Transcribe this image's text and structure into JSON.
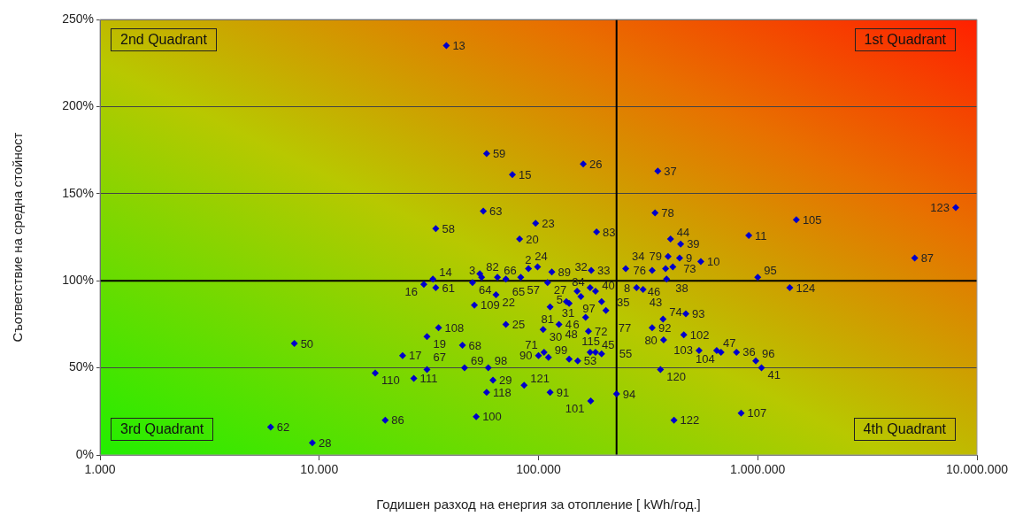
{
  "chart_data": {
    "type": "scatter",
    "xlabel": "Годишен разход на енергия за отопление [ kWh/год.]",
    "ylabel": "Съответствие на средна стойност",
    "x": [
      38000,
      58000,
      76000,
      160000,
      350000,
      56000,
      34000,
      97000,
      184000,
      340000,
      82000,
      8000000,
      1500000,
      910000,
      5200000,
      550000,
      1000000,
      1400000,
      470000,
      460000,
      540000,
      650000,
      680000,
      800000,
      980000,
      1040000,
      840000,
      415000,
      360000,
      330000,
      370000,
      372000,
      400000,
      445000,
      390000,
      440000,
      380000,
      410000,
      384000,
      330000,
      250000,
      174000,
      280000,
      300000,
      33000,
      30000,
      34000,
      50000,
      54000,
      55000,
      65000,
      71000,
      83000,
      90000,
      99000,
      110000,
      115000,
      150000,
      156000,
      172000,
      182000,
      194000,
      203000,
      134000,
      138000,
      113000,
      164000,
      169000,
      105000,
      124000,
      71000,
      35000,
      31000,
      45000,
      24000,
      18000,
      27000,
      31000,
      46000,
      59000,
      62000,
      58000,
      52000,
      86000,
      113000,
      173000,
      227000,
      20000,
      7700,
      6000,
      9300,
      106000,
      100000,
      111000,
      138000,
      151000,
      172000,
      182000,
      194000,
      64000,
      51000
    ],
    "values": [
      235,
      173,
      161,
      167,
      163,
      140,
      130,
      133,
      128,
      139,
      124,
      142,
      135,
      126,
      113,
      111,
      102,
      96,
      81,
      69,
      60,
      60,
      59,
      59,
      54,
      50,
      24,
      20,
      49,
      73,
      78,
      66,
      124,
      121,
      114,
      113,
      107,
      108,
      101,
      106,
      107,
      106,
      96,
      95,
      101,
      98,
      96,
      99,
      104,
      102,
      102,
      101,
      102,
      107,
      108,
      99,
      105,
      94,
      91,
      96,
      94,
      88,
      83,
      88,
      87,
      85,
      79,
      71,
      72,
      75,
      75,
      73,
      68,
      63,
      57,
      47,
      44,
      49,
      50,
      50,
      43,
      36,
      22,
      40,
      36,
      31,
      35,
      20,
      64,
      16,
      7,
      59,
      57,
      56,
      55,
      54,
      59,
      59,
      58,
      92,
      86
    ],
    "color": "#0000cc",
    "marker": "diamond",
    "log": "x",
    "xlim": [
      1000,
      10000000
    ],
    "xticks": [
      {
        "value": 1000,
        "label": "1.000"
      },
      {
        "value": 10000,
        "label": "10.000"
      },
      {
        "value": 100000,
        "label": "100.000"
      },
      {
        "value": 1000000,
        "label": "1.000.000"
      },
      {
        "value": 10000000,
        "label": "10.000.000"
      }
    ],
    "ylim": [
      0,
      250
    ],
    "yticks": [
      {
        "value": 0,
        "label": "0%"
      },
      {
        "value": 50,
        "label": "50%"
      },
      {
        "value": 100,
        "label": "100%"
      },
      {
        "value": 150,
        "label": "150%"
      },
      {
        "value": 200,
        "label": "200%"
      },
      {
        "value": 250,
        "label": "250%"
      }
    ],
    "grid": "y",
    "ref_lines": [
      {
        "axis": "x",
        "value": 227000,
        "color": "#000000"
      },
      {
        "axis": "y",
        "value": 100,
        "color": "#000000"
      }
    ],
    "annotations": [
      "2nd Quadrant",
      "1st Quadrant",
      "3rd Quadrant",
      "4th Quadrant",
      {
        "text": "13",
        "x": 38000,
        "y": 235
      },
      {
        "text": "59",
        "x": 58000,
        "y": 173
      },
      {
        "text": "15",
        "x": 76000,
        "y": 161
      },
      {
        "text": "26",
        "x": 160000,
        "y": 167
      },
      {
        "text": "37",
        "x": 350000,
        "y": 163
      },
      {
        "text": "63",
        "x": 56000,
        "y": 140
      },
      {
        "text": "58",
        "x": 34000,
        "y": 130
      },
      {
        "text": "23",
        "x": 97000,
        "y": 133
      },
      {
        "text": "83",
        "x": 184000,
        "y": 128
      },
      {
        "text": "78",
        "x": 340000,
        "y": 139
      },
      {
        "text": "20",
        "x": 82000,
        "y": 124
      },
      {
        "text": "123",
        "x": 8000000,
        "y": 142
      },
      {
        "text": "105",
        "x": 1500000,
        "y": 135
      },
      {
        "text": "11",
        "x": 910000,
        "y": 126
      },
      {
        "text": "87",
        "x": 5200000,
        "y": 113
      },
      {
        "text": "10",
        "x": 550000,
        "y": 111
      },
      {
        "text": "95",
        "x": 1000000,
        "y": 102
      },
      {
        "text": "124",
        "x": 1400000,
        "y": 96
      },
      {
        "text": "93",
        "x": 470000,
        "y": 81
      },
      {
        "text": "102",
        "x": 460000,
        "y": 69
      },
      {
        "text": "103",
        "x": 540000,
        "y": 60
      },
      {
        "text": "47",
        "x": 650000,
        "y": 60
      },
      {
        "text": "104",
        "x": 680000,
        "y": 59
      },
      {
        "text": "36",
        "x": 800000,
        "y": 59
      },
      {
        "text": "96",
        "x": 980000,
        "y": 54
      },
      {
        "text": "41",
        "x": 1040000,
        "y": 50
      },
      {
        "text": "107",
        "x": 840000,
        "y": 24
      },
      {
        "text": "122",
        "x": 415000,
        "y": 20
      },
      {
        "text": "120",
        "x": 360000,
        "y": 49
      },
      {
        "text": "92",
        "x": 330000,
        "y": 73
      },
      {
        "text": "74",
        "x": 370000,
        "y": 78
      },
      {
        "text": "80",
        "x": 372000,
        "y": 66
      },
      {
        "text": "44",
        "x": 400000,
        "y": 124
      },
      {
        "text": "39",
        "x": 445000,
        "y": 121
      },
      {
        "text": "79",
        "x": 390000,
        "y": 114
      },
      {
        "text": "9",
        "x": 440000,
        "y": 113
      },
      {
        "text": "73",
        "x": 380000,
        "y": 107
      },
      {
        "text": "38",
        "x": 410000,
        "y": 108
      },
      {
        "text": "46",
        "x": 384000,
        "y": 101
      },
      {
        "text": "76",
        "x": 330000,
        "y": 106
      },
      {
        "text": "34",
        "x": 250000,
        "y": 107
      },
      {
        "text": "33",
        "x": 174000,
        "y": 106
      },
      {
        "text": "8",
        "x": 280000,
        "y": 96
      },
      {
        "text": "43",
        "x": 300000,
        "y": 95
      },
      {
        "text": "14",
        "x": 33000,
        "y": 101
      },
      {
        "text": "16",
        "x": 30000,
        "y": 98
      },
      {
        "text": "61",
        "x": 34000,
        "y": 96
      },
      {
        "text": "64",
        "x": 50000,
        "y": 99
      },
      {
        "text": "82",
        "x": 54000,
        "y": 104
      },
      {
        "text": "3",
        "x": 55000,
        "y": 102
      },
      {
        "text": "66",
        "x": 65000,
        "y": 102
      },
      {
        "text": "65",
        "x": 71000,
        "y": 101
      },
      {
        "text": "57",
        "x": 83000,
        "y": 102
      },
      {
        "text": "24",
        "x": 90000,
        "y": 107
      },
      {
        "text": "2",
        "x": 99000,
        "y": 108
      },
      {
        "text": "27",
        "x": 110000,
        "y": 99
      },
      {
        "text": "89",
        "x": 115000,
        "y": 105
      },
      {
        "text": "31",
        "x": 150000,
        "y": 94
      },
      {
        "text": "40",
        "x": 156000,
        "y": 91
      },
      {
        "text": "32",
        "x": 172000,
        "y": 96
      },
      {
        "text": "35",
        "x": 182000,
        "y": 94
      },
      {
        "text": "97",
        "x": 194000,
        "y": 88
      },
      {
        "text": "77",
        "x": 203000,
        "y": 83
      },
      {
        "text": "81",
        "x": 134000,
        "y": 88
      },
      {
        "text": "84",
        "x": 138000,
        "y": 87
      },
      {
        "text": "5",
        "x": 113000,
        "y": 85
      },
      {
        "text": "6",
        "x": 164000,
        "y": 79
      },
      {
        "text": "72",
        "x": 169000,
        "y": 71
      },
      {
        "text": "30",
        "x": 105000,
        "y": 72
      },
      {
        "text": "4",
        "x": 124000,
        "y": 75
      },
      {
        "text": "25",
        "x": 71000,
        "y": 75
      },
      {
        "text": "108",
        "x": 35000,
        "y": 73
      },
      {
        "text": "19",
        "x": 31000,
        "y": 68
      },
      {
        "text": "68",
        "x": 45000,
        "y": 63
      },
      {
        "text": "17",
        "x": 24000,
        "y": 57
      },
      {
        "text": "110",
        "x": 18000,
        "y": 47
      },
      {
        "text": "111",
        "x": 27000,
        "y": 44
      },
      {
        "text": "67",
        "x": 31000,
        "y": 49
      },
      {
        "text": "69",
        "x": 46000,
        "y": 50
      },
      {
        "text": "98",
        "x": 59000,
        "y": 50
      },
      {
        "text": "29",
        "x": 62000,
        "y": 43
      },
      {
        "text": "118",
        "x": 58000,
        "y": 36
      },
      {
        "text": "100",
        "x": 52000,
        "y": 22
      },
      {
        "text": "121",
        "x": 86000,
        "y": 40
      },
      {
        "text": "91",
        "x": 113000,
        "y": 36
      },
      {
        "text": "101",
        "x": 173000,
        "y": 31
      },
      {
        "text": "94",
        "x": 227000,
        "y": 35
      },
      {
        "text": "86",
        "x": 20000,
        "y": 20
      },
      {
        "text": "50",
        "x": 7700,
        "y": 64
      },
      {
        "text": "62",
        "x": 6000,
        "y": 16
      },
      {
        "text": "28",
        "x": 9300,
        "y": 7
      },
      {
        "text": "71",
        "x": 106000,
        "y": 59
      },
      {
        "text": "90",
        "x": 100000,
        "y": 57
      },
      {
        "text": "99",
        "x": 111000,
        "y": 56
      },
      {
        "text": "115",
        "x": 138000,
        "y": 55
      },
      {
        "text": "53",
        "x": 151000,
        "y": 54
      },
      {
        "text": "48",
        "x": 172000,
        "y": 59
      },
      {
        "text": "45",
        "x": 182000,
        "y": 59
      },
      {
        "text": "55",
        "x": 194000,
        "y": 58
      },
      {
        "text": "22",
        "x": 64000,
        "y": 92
      },
      {
        "text": "109",
        "x": 51000,
        "y": 86
      }
    ]
  }
}
